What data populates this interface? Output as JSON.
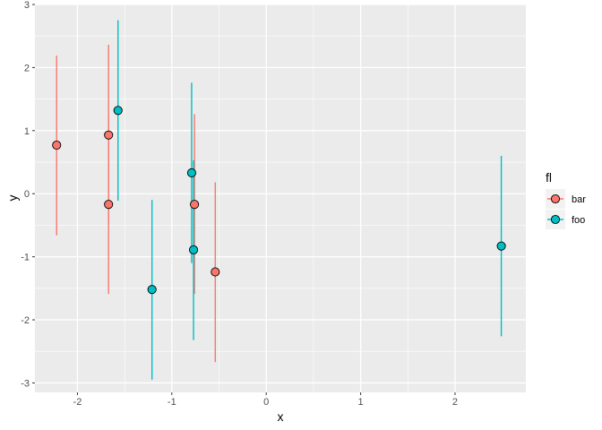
{
  "chart_data": {
    "type": "scatter",
    "title": "",
    "xlabel": "x",
    "ylabel": "y",
    "xlim": [
      -2.45,
      2.75
    ],
    "ylim": [
      -3.15,
      3.0
    ],
    "x_ticks": [
      -2,
      -1,
      0,
      1,
      2
    ],
    "y_ticks": [
      -3,
      -2,
      -1,
      0,
      1,
      2,
      3
    ],
    "x_tick_labels": [
      "-2",
      "-1",
      "0",
      "1",
      "2"
    ],
    "y_tick_labels": [
      "-3",
      "-2",
      "-1",
      "0",
      "1",
      "2",
      "3"
    ],
    "grid": true,
    "background": "#ebebeb",
    "error_bars": true,
    "legend": {
      "title": "fl",
      "position": "right"
    },
    "series": [
      {
        "name": "bar",
        "color": "#f8766d",
        "points": [
          {
            "x": -2.22,
            "y": 0.77,
            "ymin": -0.66,
            "ymax": 2.19
          },
          {
            "x": -1.67,
            "y": 0.93,
            "ymin": -0.49,
            "ymax": 2.36
          },
          {
            "x": -1.67,
            "y": -0.17,
            "ymin": -1.59,
            "ymax": 1.25
          },
          {
            "x": -0.76,
            "y": -0.17,
            "ymin": -1.59,
            "ymax": 1.26
          },
          {
            "x": -0.54,
            "y": -1.24,
            "ymin": -2.67,
            "ymax": 0.18
          }
        ]
      },
      {
        "name": "foo",
        "color": "#00bfc4",
        "points": [
          {
            "x": -1.57,
            "y": 1.32,
            "ymin": -0.11,
            "ymax": 2.75
          },
          {
            "x": -1.21,
            "y": -1.52,
            "ymin": -2.95,
            "ymax": -0.1
          },
          {
            "x": -0.79,
            "y": 0.33,
            "ymin": -1.1,
            "ymax": 1.76
          },
          {
            "x": -0.77,
            "y": -0.89,
            "ymin": -2.32,
            "ymax": 0.53
          },
          {
            "x": 2.49,
            "y": -0.83,
            "ymin": -2.26,
            "ymax": 0.6
          }
        ]
      }
    ]
  }
}
